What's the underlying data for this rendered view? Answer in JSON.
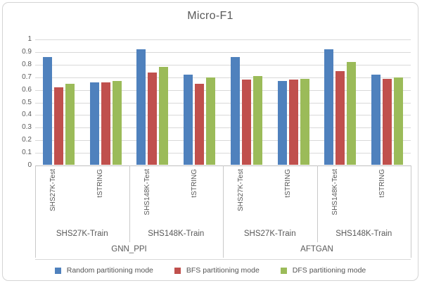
{
  "chart": {
    "title": "Micro-F1"
  },
  "chart_data": {
    "type": "bar",
    "title": "Micro-F1",
    "xlabel": "",
    "ylabel": "",
    "ylim": [
      0,
      1
    ],
    "grid": true,
    "legend_position": "bottom",
    "yticks": [
      {
        "value": 1,
        "label": "1"
      },
      {
        "value": 0.9,
        "label": "0.9"
      },
      {
        "value": 0.8,
        "label": "0.8"
      },
      {
        "value": 0.7,
        "label": "0.7"
      },
      {
        "value": 0.6,
        "label": "0.6"
      },
      {
        "value": 0.5,
        "label": "0.5"
      },
      {
        "value": 0.4,
        "label": "0.4"
      },
      {
        "value": 0.3,
        "label": "0.3"
      },
      {
        "value": 0.2,
        "label": "0.2"
      },
      {
        "value": 0.1,
        "label": "0.1"
      },
      {
        "value": 0,
        "label": "0"
      }
    ],
    "categories": [
      "SHS27K-Test",
      "tSTRING",
      "SHS148K-Test",
      "tSTRING",
      "SHS27K-Test",
      "tSTRING",
      "SHS148K-Test",
      "tSTRING"
    ],
    "category_groups_mid": [
      {
        "label": "SHS27K-Train",
        "span": 2
      },
      {
        "label": "SHS148K-Train",
        "span": 2
      },
      {
        "label": "SHS27K-Train",
        "span": 2
      },
      {
        "label": "SHS148K-Train",
        "span": 2
      }
    ],
    "category_groups_top": [
      {
        "label": "GNN_PPI",
        "span": 4
      },
      {
        "label": "AFTGAN",
        "span": 4
      }
    ],
    "series": [
      {
        "name": "Random partitioning mode",
        "color": "#4F81BD",
        "values": [
          0.86,
          0.66,
          0.92,
          0.72,
          0.86,
          0.67,
          0.92,
          0.72
        ]
      },
      {
        "name": "BFS partitioning mode",
        "color": "#C0504D",
        "values": [
          0.62,
          0.66,
          0.74,
          0.65,
          0.68,
          0.68,
          0.75,
          0.69
        ]
      },
      {
        "name": "DFS partitioning mode",
        "color": "#9BBB59",
        "values": [
          0.65,
          0.67,
          0.78,
          0.7,
          0.71,
          0.69,
          0.82,
          0.7
        ]
      }
    ]
  }
}
